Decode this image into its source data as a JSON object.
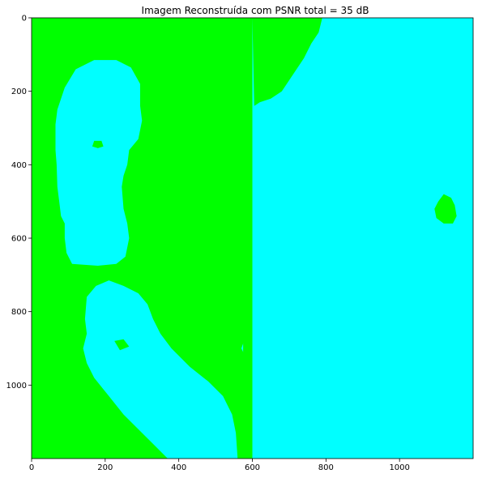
{
  "chart_data": {
    "type": "heatmap",
    "title": "Imagem Reconstruída com PSNR total = 35 dB",
    "xlabel": "",
    "ylabel": "",
    "xlim": [
      0,
      1200
    ],
    "ylim": [
      1200,
      0
    ],
    "x_ticks": [
      0,
      200,
      400,
      600,
      800,
      1000
    ],
    "y_ticks": [
      0,
      200,
      400,
      600,
      800,
      1000
    ],
    "grid": false,
    "colors": {
      "background_region": "#00ff00",
      "foreground_region": "#00ffff"
    },
    "regions": [
      {
        "name": "face",
        "color": "#00ffff",
        "points": [
          [
            90,
            190
          ],
          [
            120,
            140
          ],
          [
            170,
            115
          ],
          [
            230,
            115
          ],
          [
            270,
            135
          ],
          [
            295,
            180
          ],
          [
            295,
            240
          ],
          [
            300,
            280
          ],
          [
            290,
            330
          ],
          [
            265,
            360
          ],
          [
            260,
            400
          ],
          [
            250,
            430
          ],
          [
            245,
            460
          ],
          [
            250,
            520
          ],
          [
            260,
            560
          ],
          [
            265,
            600
          ],
          [
            255,
            650
          ],
          [
            230,
            670
          ],
          [
            180,
            675
          ],
          [
            110,
            670
          ],
          [
            95,
            640
          ],
          [
            90,
            600
          ],
          [
            90,
            560
          ],
          [
            80,
            540
          ],
          [
            75,
            500
          ],
          [
            70,
            460
          ],
          [
            68,
            400
          ],
          [
            65,
            360
          ],
          [
            65,
            290
          ],
          [
            70,
            250
          ]
        ]
      },
      {
        "name": "right-background",
        "color": "#00ffff",
        "points": [
          [
            670,
            0
          ],
          [
            1200,
            0
          ],
          [
            1200,
            1200
          ],
          [
            600,
            1200
          ],
          [
            600,
            1150
          ],
          [
            595,
            950
          ],
          [
            570,
            900
          ],
          [
            585,
            860
          ],
          [
            590,
            800
          ],
          [
            600,
            0
          ]
        ]
      },
      {
        "name": "green-patch-top",
        "color": "#00ff00",
        "points": [
          [
            600,
            0
          ],
          [
            790,
            0
          ],
          [
            780,
            40
          ],
          [
            760,
            70
          ],
          [
            740,
            110
          ],
          [
            720,
            140
          ],
          [
            700,
            170
          ],
          [
            680,
            200
          ],
          [
            650,
            220
          ],
          [
            620,
            230
          ],
          [
            605,
            240
          ]
        ]
      },
      {
        "name": "green-strip-left-of-boundary",
        "color": "#00ff00",
        "points": [
          [
            575,
            0
          ],
          [
            600,
            0
          ],
          [
            600,
            1200
          ],
          [
            575,
            1200
          ]
        ]
      },
      {
        "name": "green-spot-right",
        "color": "#00ff00",
        "points": [
          [
            1120,
            480
          ],
          [
            1140,
            490
          ],
          [
            1150,
            510
          ],
          [
            1155,
            540
          ],
          [
            1145,
            560
          ],
          [
            1120,
            560
          ],
          [
            1100,
            545
          ],
          [
            1095,
            520
          ],
          [
            1105,
            500
          ]
        ]
      },
      {
        "name": "shoulder-body",
        "color": "#00ffff",
        "points": [
          [
            150,
            760
          ],
          [
            175,
            730
          ],
          [
            210,
            715
          ],
          [
            250,
            730
          ],
          [
            290,
            750
          ],
          [
            315,
            780
          ],
          [
            330,
            820
          ],
          [
            350,
            860
          ],
          [
            380,
            900
          ],
          [
            430,
            950
          ],
          [
            480,
            990
          ],
          [
            520,
            1030
          ],
          [
            545,
            1080
          ],
          [
            555,
            1130
          ],
          [
            560,
            1200
          ],
          [
            370,
            1200
          ],
          [
            330,
            1160
          ],
          [
            290,
            1120
          ],
          [
            250,
            1080
          ],
          [
            210,
            1030
          ],
          [
            170,
            980
          ],
          [
            150,
            940
          ],
          [
            140,
            900
          ],
          [
            150,
            860
          ],
          [
            145,
            820
          ]
        ]
      },
      {
        "name": "eye-left",
        "color": "#00ff00",
        "points": [
          [
            170,
            335
          ],
          [
            190,
            335
          ],
          [
            195,
            350
          ],
          [
            180,
            355
          ],
          [
            165,
            350
          ]
        ]
      },
      {
        "name": "eye-right",
        "color": "#00ff00",
        "points": [
          [
            305,
            340
          ],
          [
            320,
            338
          ],
          [
            325,
            350
          ],
          [
            310,
            352
          ]
        ]
      },
      {
        "name": "green-blob-body",
        "color": "#00ff00",
        "points": [
          [
            225,
            880
          ],
          [
            250,
            875
          ],
          [
            265,
            895
          ],
          [
            240,
            905
          ]
        ]
      }
    ]
  }
}
